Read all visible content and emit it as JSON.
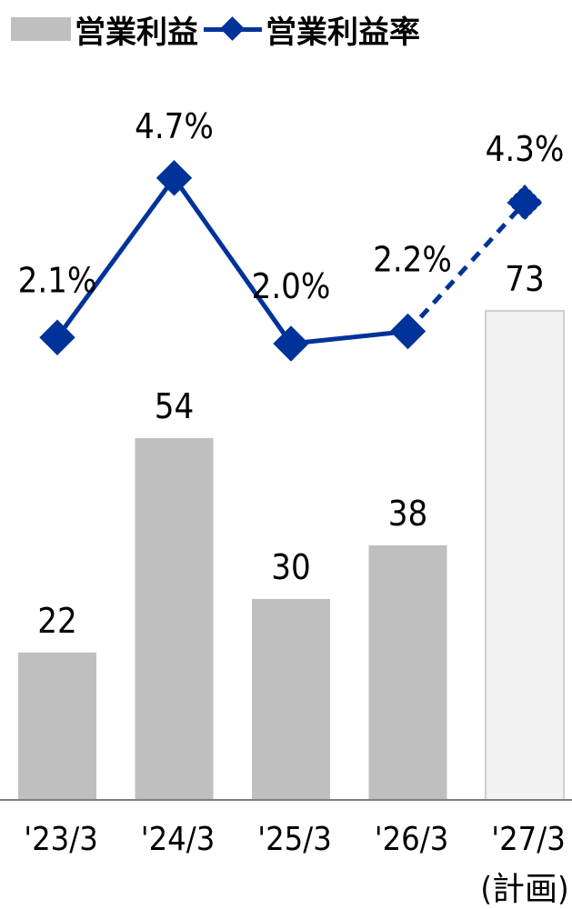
{
  "legend": {
    "bar_label": "営業利益",
    "line_label": "営業利益率"
  },
  "colors": {
    "bar": "#bfbfbf",
    "bar_plan_fill": "#f2f2f2",
    "bar_plan_stroke": "#d0d0d0",
    "line": "#003399",
    "axis": "#7f7f7f"
  },
  "chart_data": {
    "type": "bar",
    "categories": [
      "'23/3",
      "'24/3",
      "'25/3",
      "'26/3",
      "'27/3"
    ],
    "category_sublabels": [
      "",
      "",
      "",
      "",
      "(計画)"
    ],
    "legend_position": "top-left",
    "grid": false,
    "series": [
      {
        "name": "営業利益",
        "type": "bar",
        "values": [
          22,
          54,
          30,
          38,
          73
        ],
        "value_labels": [
          "22",
          "54",
          "30",
          "38",
          "73"
        ],
        "planned": [
          false,
          false,
          false,
          false,
          true
        ]
      },
      {
        "name": "営業利益率",
        "type": "line",
        "values": [
          2.1,
          4.7,
          2.0,
          2.2,
          4.3
        ],
        "value_labels": [
          "2.1%",
          "4.7%",
          "2.0%",
          "2.2%",
          "4.3%"
        ],
        "dashed_from_index": 3
      }
    ]
  }
}
